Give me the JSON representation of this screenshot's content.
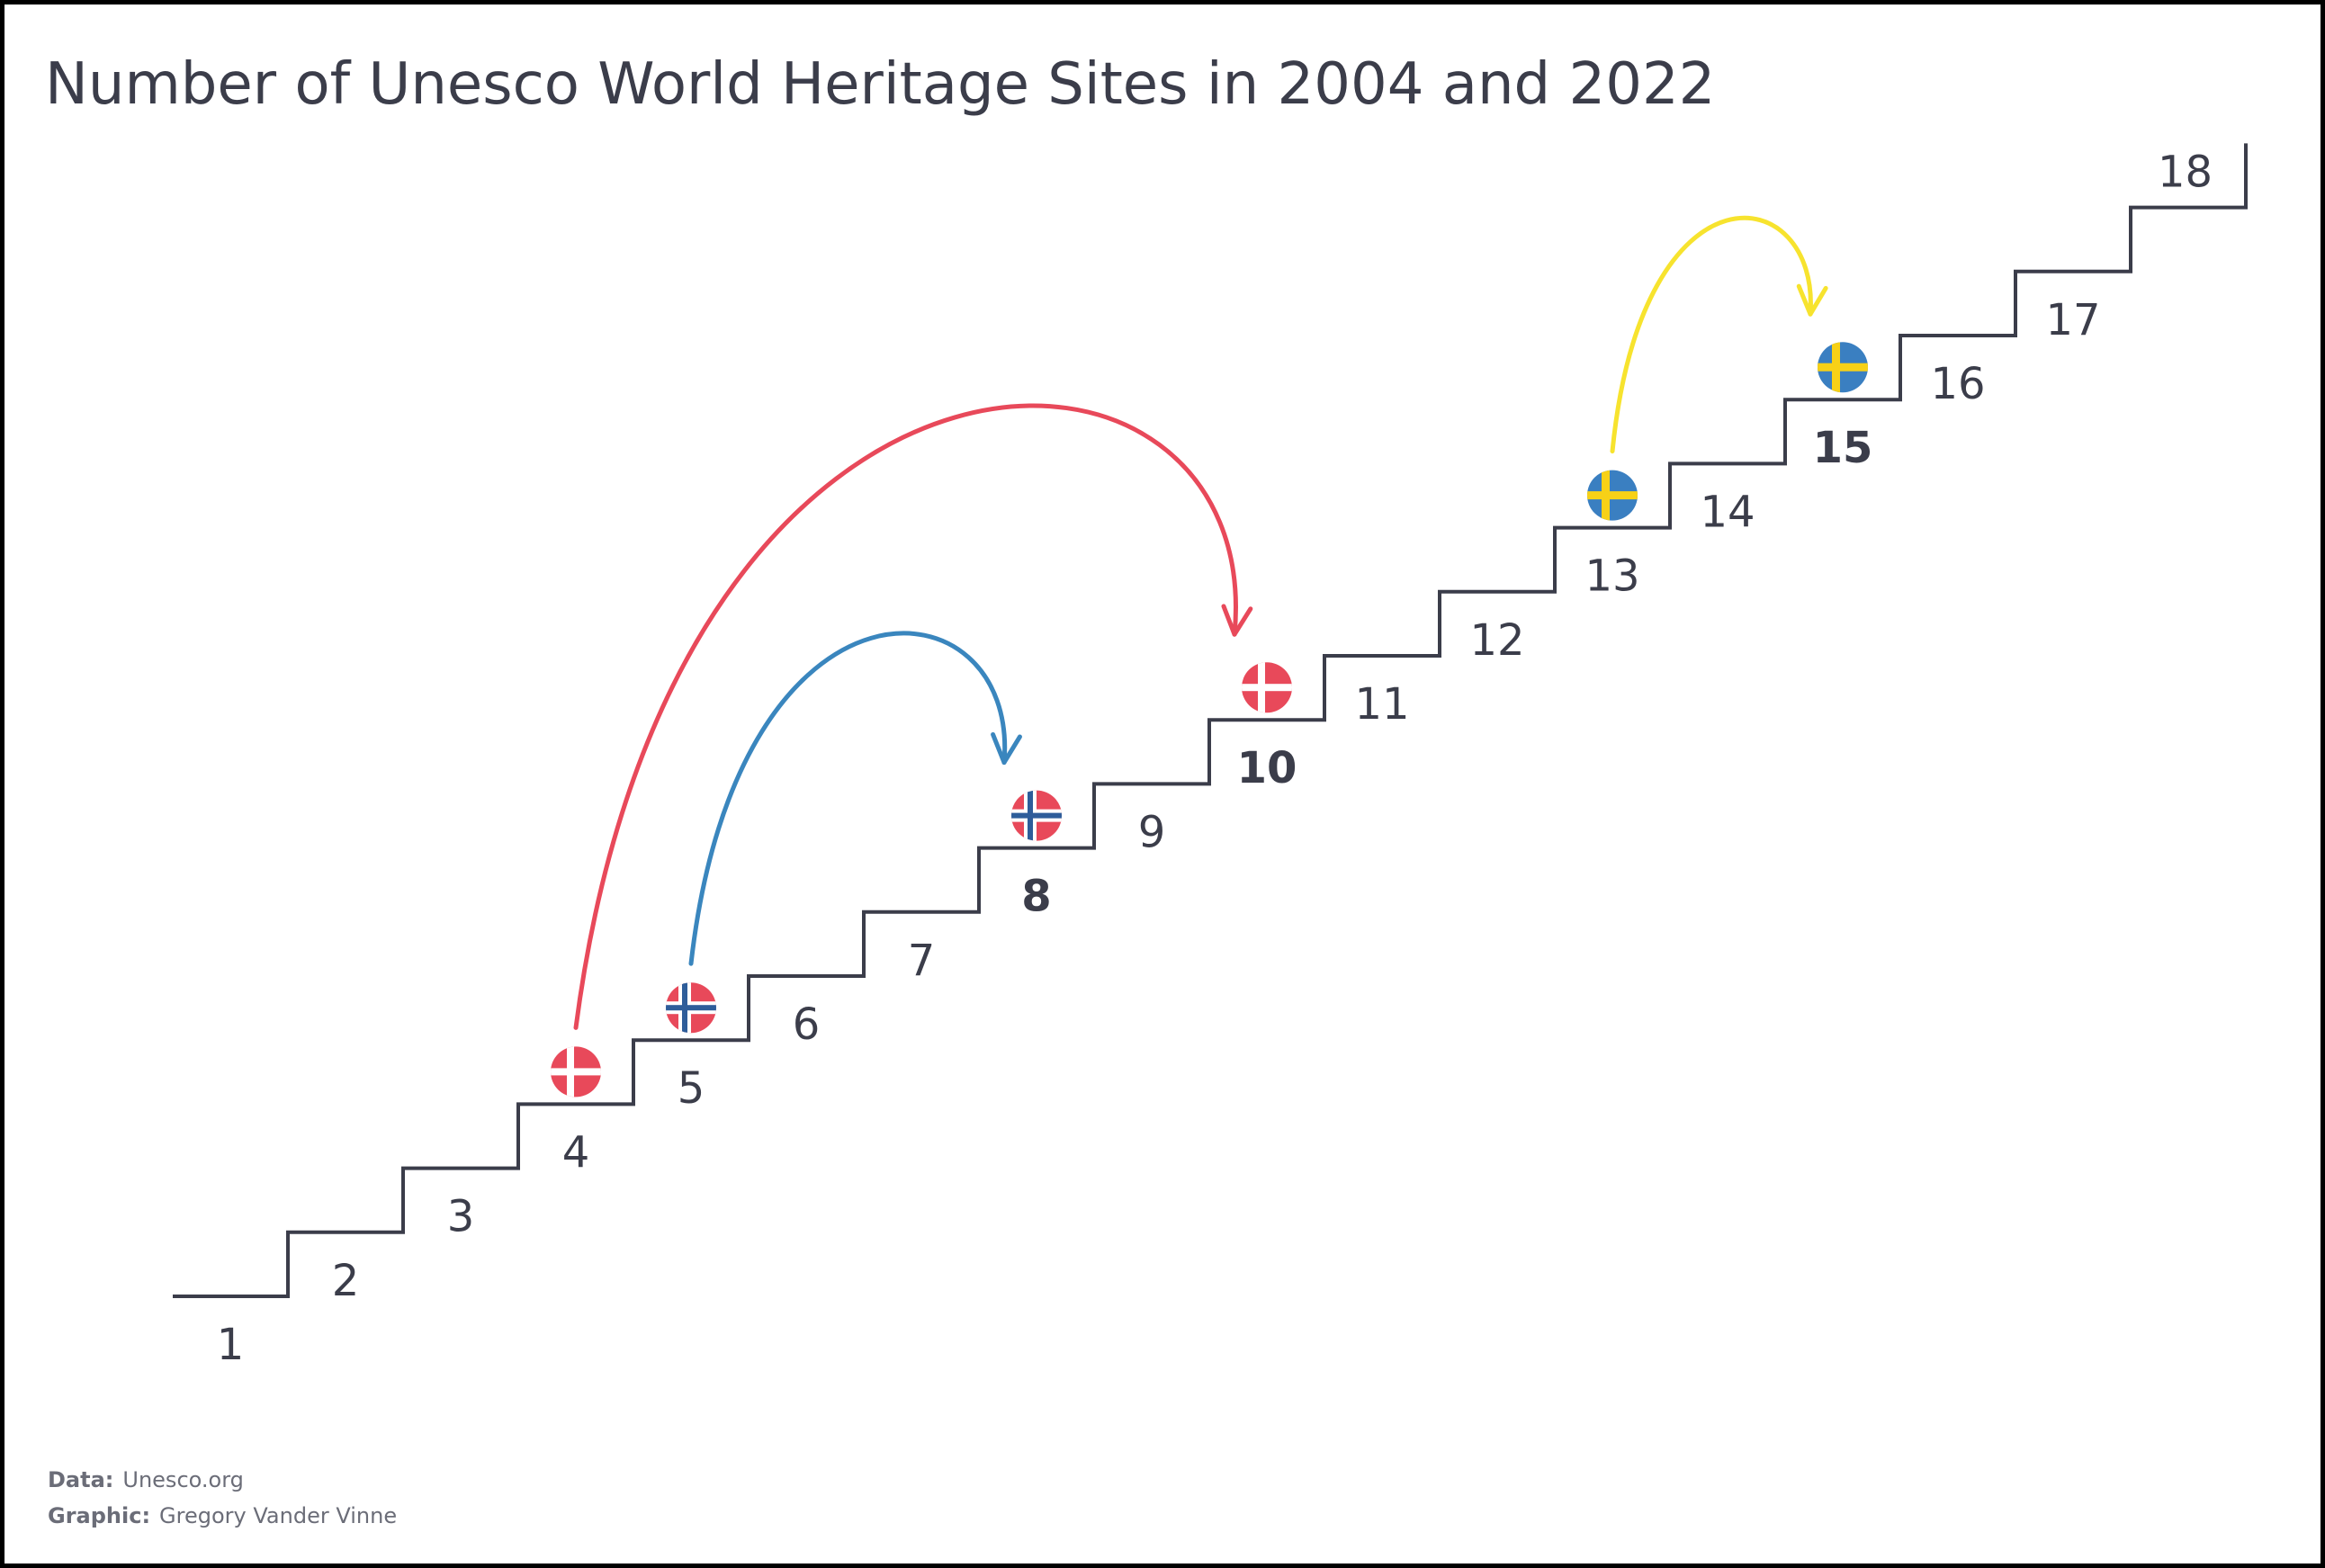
{
  "chart_data": {
    "type": "step",
    "title": "Number of Unesco World Heritage Sites in 2004 and 2022",
    "steps": [
      1,
      2,
      3,
      4,
      5,
      6,
      7,
      8,
      9,
      10,
      11,
      12,
      13,
      14,
      15,
      16,
      17,
      18
    ],
    "highlighted_steps": [
      8,
      10,
      15
    ],
    "moves": [
      {
        "country": "Denmark",
        "from": 4,
        "to": 10,
        "flag": "denmark-flag-icon",
        "color": "#e8495a"
      },
      {
        "country": "Norway",
        "from": 5,
        "to": 8,
        "flag": "norway-flag-icon",
        "color": "#3a86be"
      },
      {
        "country": "Sweden",
        "from": 13,
        "to": 15,
        "flag": "sweden-flag-icon",
        "color": "#f7e32e"
      }
    ],
    "colors": {
      "stairs": "#3b3d4a",
      "denmark_red": "#e8495a",
      "norway_red": "#e8495a",
      "norway_blue": "#2e5d9a",
      "sweden_blue": "#3a7fc1",
      "sweden_yellow": "#f7d117"
    }
  },
  "credits": {
    "data_label": "Data:",
    "data_value": "Unesco.org",
    "graphic_label": "Graphic:",
    "graphic_value": "Gregory Vander Vinne"
  }
}
